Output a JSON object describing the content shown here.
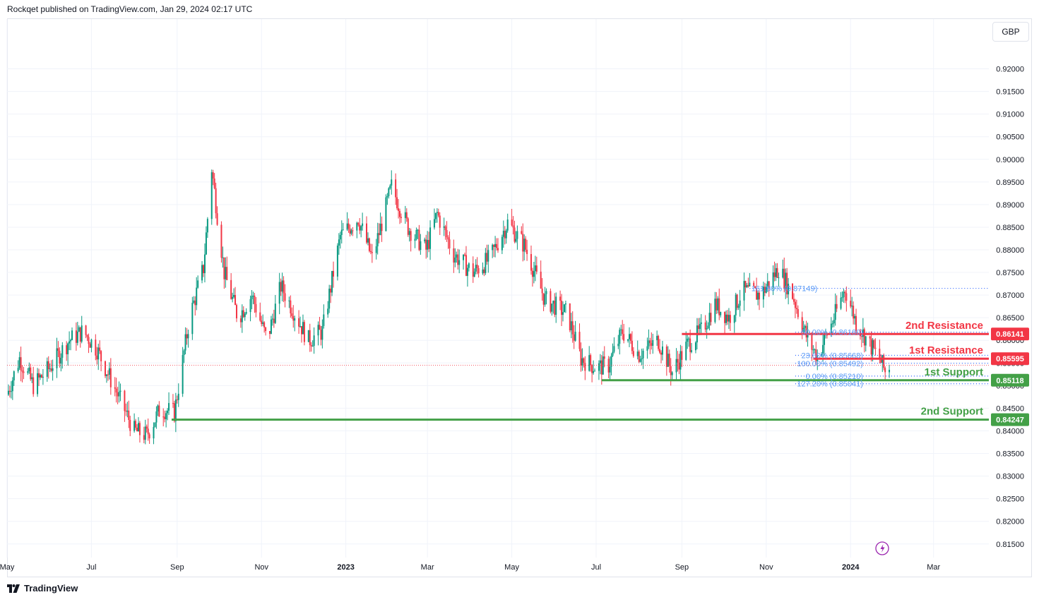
{
  "header": {
    "publisher_line": "Rockqet published on TradingView.com, Jan 29, 2024 02:17 UTC"
  },
  "currency": "GBP",
  "footer": {
    "brand": "TradingView"
  },
  "colors": {
    "up": "#089981",
    "down": "#f23645",
    "resistance": "#f23645",
    "support": "#43a047",
    "fib": "#2962ff",
    "fib_text": "#5b9cf6"
  },
  "chart_data": {
    "type": "candlestick",
    "title": "",
    "x_range": [
      "2022-05-01",
      "2024-04-10"
    ],
    "ylim": [
      0.812,
      0.931
    ],
    "y_ticks": [
      "0.92000",
      "0.91500",
      "0.91000",
      "0.90500",
      "0.90000",
      "0.89500",
      "0.89000",
      "0.88500",
      "0.88000",
      "0.87500",
      "0.87000",
      "0.86500",
      "0.86000",
      "0.85500",
      "0.85000",
      "0.84500",
      "0.84000",
      "0.83500",
      "0.83000",
      "0.82500",
      "0.82000",
      "0.81500"
    ],
    "x_ticks": [
      {
        "label": "May",
        "date": "2022-05-01",
        "bold": false
      },
      {
        "label": "Jul",
        "date": "2022-07-01",
        "bold": false
      },
      {
        "label": "Sep",
        "date": "2022-09-01",
        "bold": false
      },
      {
        "label": "Nov",
        "date": "2022-11-01",
        "bold": false
      },
      {
        "label": "2023",
        "date": "2023-01-01",
        "bold": true
      },
      {
        "label": "Mar",
        "date": "2023-03-01",
        "bold": false
      },
      {
        "label": "May",
        "date": "2023-05-01",
        "bold": false
      },
      {
        "label": "Jul",
        "date": "2023-07-01",
        "bold": false
      },
      {
        "label": "Sep",
        "date": "2023-09-01",
        "bold": false
      },
      {
        "label": "Nov",
        "date": "2023-11-01",
        "bold": false
      },
      {
        "label": "2024",
        "date": "2024-01-01",
        "bold": true
      },
      {
        "label": "Mar",
        "date": "2024-03-01",
        "bold": false
      }
    ],
    "price_path": [
      [
        "2022-05-01",
        0.848
      ],
      [
        "2022-05-10",
        0.856
      ],
      [
        "2022-05-20",
        0.85
      ],
      [
        "2022-06-01",
        0.854
      ],
      [
        "2022-06-15",
        0.86
      ],
      [
        "2022-06-25",
        0.862
      ],
      [
        "2022-07-05",
        0.858
      ],
      [
        "2022-07-20",
        0.848
      ],
      [
        "2022-08-01",
        0.84
      ],
      [
        "2022-08-10",
        0.839
      ],
      [
        "2022-08-20",
        0.845
      ],
      [
        "2022-08-30",
        0.844
      ],
      [
        "2022-09-10",
        0.865
      ],
      [
        "2022-09-20",
        0.876
      ],
      [
        "2022-09-26",
        0.898
      ],
      [
        "2022-10-05",
        0.875
      ],
      [
        "2022-10-15",
        0.865
      ],
      [
        "2022-10-25",
        0.87
      ],
      [
        "2022-11-05",
        0.86
      ],
      [
        "2022-11-15",
        0.872
      ],
      [
        "2022-11-25",
        0.866
      ],
      [
        "2022-12-05",
        0.86
      ],
      [
        "2022-12-15",
        0.862
      ],
      [
        "2022-12-28",
        0.883
      ],
      [
        "2023-01-10",
        0.887
      ],
      [
        "2023-01-20",
        0.878
      ],
      [
        "2023-02-03",
        0.894
      ],
      [
        "2023-02-15",
        0.885
      ],
      [
        "2023-02-28",
        0.88
      ],
      [
        "2023-03-08",
        0.888
      ],
      [
        "2023-03-20",
        0.879
      ],
      [
        "2023-04-03",
        0.875
      ],
      [
        "2023-04-15",
        0.878
      ],
      [
        "2023-04-28",
        0.886
      ],
      [
        "2023-05-10",
        0.881
      ],
      [
        "2023-05-25",
        0.869
      ],
      [
        "2023-06-10",
        0.866
      ],
      [
        "2023-06-20",
        0.856
      ],
      [
        "2023-07-01",
        0.854
      ],
      [
        "2023-07-10",
        0.8545
      ],
      [
        "2023-07-20",
        0.862
      ],
      [
        "2023-08-01",
        0.857
      ],
      [
        "2023-08-15",
        0.86
      ],
      [
        "2023-08-25",
        0.853
      ],
      [
        "2023-09-05",
        0.859
      ],
      [
        "2023-09-15",
        0.862
      ],
      [
        "2023-09-25",
        0.868
      ],
      [
        "2023-10-05",
        0.865
      ],
      [
        "2023-10-15",
        0.871
      ],
      [
        "2023-10-28",
        0.87
      ],
      [
        "2023-11-10",
        0.876
      ],
      [
        "2023-11-20",
        0.87
      ],
      [
        "2023-12-01",
        0.86
      ],
      [
        "2023-12-08",
        0.8565
      ],
      [
        "2023-12-20",
        0.865
      ],
      [
        "2023-12-28",
        0.8714
      ],
      [
        "2024-01-05",
        0.864
      ],
      [
        "2024-01-15",
        0.859
      ],
      [
        "2024-01-22",
        0.856
      ],
      [
        "2024-01-26",
        0.853
      ],
      [
        "2024-01-29",
        0.8545
      ]
    ],
    "current_price_line": 0.8545,
    "levels": [
      {
        "label": "2nd Resistance",
        "value": 0.86141,
        "tag": "0.86141",
        "type": "resistance",
        "start": "2023-09-01"
      },
      {
        "label": "1st Resistance",
        "value": 0.85595,
        "tag": "0.85595",
        "type": "resistance",
        "start": "2023-12-05"
      },
      {
        "label": "1st Support",
        "value": 0.85118,
        "tag": "0.85118",
        "type": "support",
        "start": "2023-07-05"
      },
      {
        "label": "2nd Support",
        "value": 0.84247,
        "tag": "0.84247",
        "type": "support",
        "start": "2022-08-28"
      }
    ],
    "fib_levels": [
      {
        "label": "161.80% (0.87149)",
        "value": 0.87149,
        "start": "2023-10-20"
      },
      {
        "label": "50.00% (0.86180)",
        "value": 0.8618,
        "start": "2023-11-22"
      },
      {
        "label": "23.60% (0.85668)",
        "value": 0.85668,
        "start": "2023-11-22"
      },
      {
        "label": "100.00% (0.85492)",
        "value": 0.85492,
        "start": "2023-11-22"
      },
      {
        "label": "0.00% (0.85210)",
        "value": 0.8521,
        "start": "2023-11-22"
      },
      {
        "label": "127.20% (0.85041)",
        "value": 0.85041,
        "start": "2023-11-22"
      }
    ]
  }
}
